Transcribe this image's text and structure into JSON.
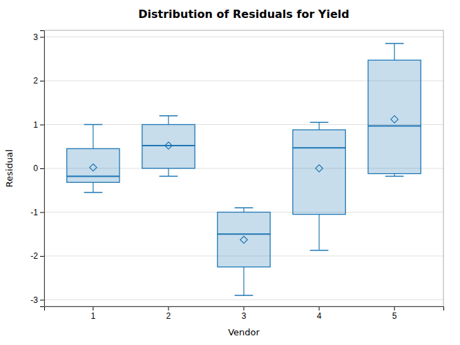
{
  "chart_data": {
    "type": "box",
    "title": "Distribution of Residuals for Yield",
    "x_label": "Vendor",
    "y_label": "Residual",
    "categories": [
      1,
      2,
      3,
      4,
      5
    ],
    "boxes": [
      {
        "q1": -0.32,
        "median": -0.18,
        "q3": 0.45,
        "whisker_low": -0.55,
        "whisker_high": 1.0,
        "mean": 0.02
      },
      {
        "q1": 0.0,
        "median": 0.52,
        "q3": 1.0,
        "whisker_low": -0.18,
        "whisker_high": 1.2,
        "mean": 0.52
      },
      {
        "q1": -2.25,
        "median": -1.5,
        "q3": -1.0,
        "whisker_low": -2.9,
        "whisker_high": -0.9,
        "mean": -1.63
      },
      {
        "q1": -1.05,
        "median": 0.47,
        "q3": 0.88,
        "whisker_low": -1.87,
        "whisker_high": 1.05,
        "mean": 0.0
      },
      {
        "q1": -0.12,
        "median": 0.97,
        "q3": 2.47,
        "whisker_low": -0.18,
        "whisker_high": 2.85,
        "mean": 1.12
      }
    ],
    "ylim": [
      -3.15,
      3.15
    ],
    "yticks": [
      -3,
      -2,
      -1,
      0,
      1,
      2,
      3
    ],
    "grid": true
  }
}
